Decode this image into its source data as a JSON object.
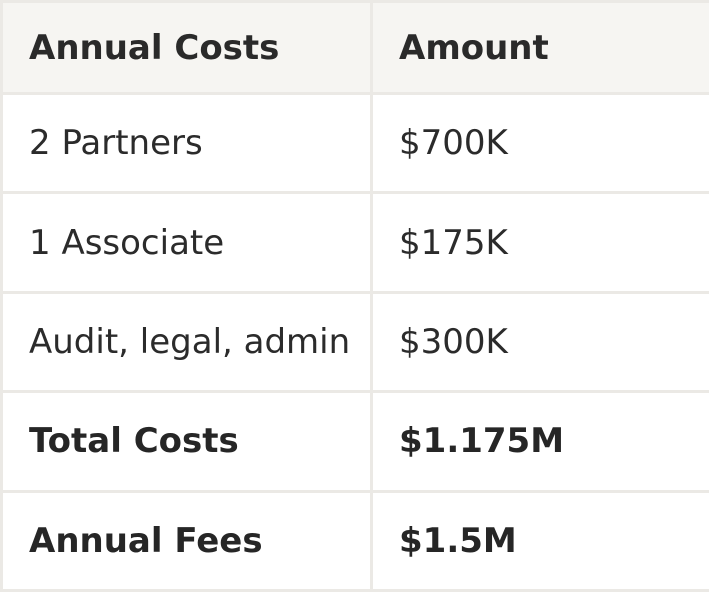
{
  "table": {
    "headers": {
      "label": "Annual Costs",
      "amount": "Amount"
    },
    "rows": [
      {
        "label": "2 Partners",
        "amount": "$700K",
        "bold": false
      },
      {
        "label": "1 Associate",
        "amount": "$175K",
        "bold": false
      },
      {
        "label": "Audit, legal, admin",
        "amount": "$300K",
        "bold": false
      },
      {
        "label": "Total Costs",
        "amount": "$1.175M",
        "bold": true
      },
      {
        "label": "Annual Fees",
        "amount": "$1.5M",
        "bold": true
      }
    ]
  },
  "colors": {
    "header_background": "#f6f5f2",
    "border": "#ebe9e5",
    "text": "#2b2b2b"
  }
}
